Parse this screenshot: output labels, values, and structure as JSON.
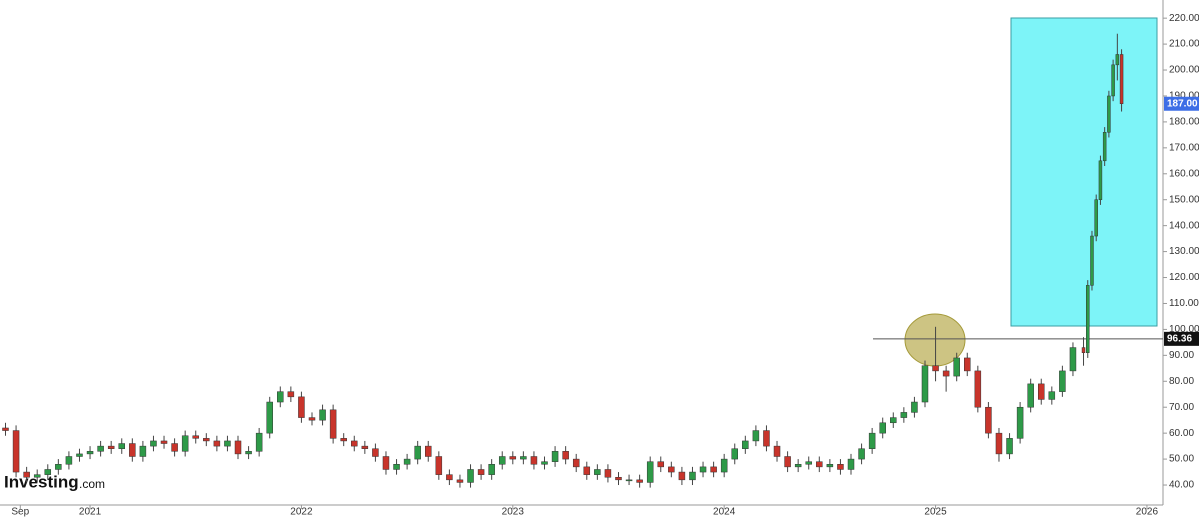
{
  "chart_data": {
    "type": "candlestick",
    "watermark": [
      "Investing",
      ".com"
    ],
    "up_color": "#2e9a48",
    "down_color": "#c8342b",
    "xlim": [
      2020.574,
      2026.076
    ],
    "xticks": [
      {
        "value": 2020.67,
        "label": "Sep"
      },
      {
        "value": 2021,
        "label": "2021"
      },
      {
        "value": 2022,
        "label": "2022"
      },
      {
        "value": 2023,
        "label": "2023"
      },
      {
        "value": 2024,
        "label": "2024"
      },
      {
        "value": 2025,
        "label": "2025"
      },
      {
        "value": 2026,
        "label": "2026"
      }
    ],
    "ylim": [
      32.3,
      227
    ],
    "yticks": [
      {
        "value": 40,
        "label": "40.00"
      },
      {
        "value": 50,
        "label": "50.00"
      },
      {
        "value": 60,
        "label": "60.00"
      },
      {
        "value": 70,
        "label": "70.00"
      },
      {
        "value": 80,
        "label": "80.00"
      },
      {
        "value": 90,
        "label": "90.00"
      },
      {
        "value": 100,
        "label": "100.00"
      },
      {
        "value": 110,
        "label": "110.00"
      },
      {
        "value": 120,
        "label": "120.00"
      },
      {
        "value": 130,
        "label": "130.00"
      },
      {
        "value": 140,
        "label": "140.00"
      },
      {
        "value": 150,
        "label": "150.00"
      },
      {
        "value": 160,
        "label": "160.00"
      },
      {
        "value": 170,
        "label": "170.00"
      },
      {
        "value": 180,
        "label": "180.00"
      },
      {
        "value": 190,
        "label": "190.00"
      },
      {
        "value": 200,
        "label": "200.00"
      },
      {
        "value": 210,
        "label": "210.00"
      },
      {
        "value": 220,
        "label": "220.00"
      }
    ],
    "last_price": {
      "value": 187,
      "label": "187.00"
    },
    "level": {
      "value": 96.36,
      "label": "96.36"
    },
    "x": [
      2020.6,
      2020.65,
      2020.7,
      2020.75,
      2020.8,
      2020.85,
      2020.9,
      2020.95,
      2021.0,
      2021.05,
      2021.1,
      2021.15,
      2021.2,
      2021.25,
      2021.3,
      2021.35,
      2021.4,
      2021.45,
      2021.5,
      2021.55,
      2021.6,
      2021.65,
      2021.7,
      2021.75,
      2021.8,
      2021.85,
      2021.9,
      2021.95,
      2022.0,
      2022.05,
      2022.1,
      2022.15,
      2022.2,
      2022.25,
      2022.3,
      2022.35,
      2022.4,
      2022.45,
      2022.5,
      2022.55,
      2022.6,
      2022.65,
      2022.7,
      2022.75,
      2022.8,
      2022.85,
      2022.9,
      2022.95,
      2023.0,
      2023.05,
      2023.1,
      2023.15,
      2023.2,
      2023.25,
      2023.3,
      2023.35,
      2023.4,
      2023.45,
      2023.5,
      2023.55,
      2023.6,
      2023.65,
      2023.7,
      2023.75,
      2023.8,
      2023.85,
      2023.9,
      2023.95,
      2024.0,
      2024.05,
      2024.1,
      2024.15,
      2024.2,
      2024.25,
      2024.3,
      2024.35,
      2024.4,
      2024.45,
      2024.5,
      2024.55,
      2024.6,
      2024.65,
      2024.7,
      2024.75,
      2024.8,
      2024.85,
      2024.9,
      2024.95,
      2025.0,
      2025.05,
      2025.1,
      2025.15,
      2025.2,
      2025.25,
      2025.3,
      2025.35,
      2025.4,
      2025.45,
      2025.5,
      2025.55,
      2025.6,
      2025.65,
      2025.7,
      2025.72,
      2025.74,
      2025.76,
      2025.78,
      2025.8,
      2025.82,
      2025.84,
      2025.86,
      2025.88
    ],
    "open": [
      62,
      61,
      45,
      43,
      44,
      46,
      48,
      51,
      52,
      53,
      55,
      54,
      56,
      51,
      55,
      57,
      56,
      53,
      59,
      58,
      57,
      55,
      57,
      52,
      53,
      60,
      72,
      76,
      74,
      66,
      65,
      69,
      58,
      57,
      55,
      54,
      51,
      46,
      48,
      50,
      55,
      51,
      44,
      42,
      41,
      46,
      44,
      48,
      51,
      50,
      51,
      48,
      49,
      53,
      50,
      47,
      44,
      46,
      43,
      42,
      42,
      41,
      49,
      47,
      45,
      42,
      45,
      47,
      45,
      50,
      54,
      57,
      61,
      55,
      51,
      47,
      48,
      49,
      47,
      48,
      46,
      50,
      54,
      60,
      64,
      66,
      68,
      72,
      86,
      84,
      82,
      89,
      84,
      70,
      60,
      52,
      58,
      70,
      79,
      73,
      76,
      84,
      93,
      91,
      117,
      136,
      150,
      165,
      176,
      190,
      202,
      206
    ],
    "high": [
      64,
      63,
      47,
      46,
      48,
      50,
      53,
      54,
      55,
      57,
      57,
      58,
      58,
      57,
      59,
      59,
      58,
      61,
      61,
      60,
      59,
      59,
      59,
      55,
      62,
      74,
      78,
      78,
      76,
      68,
      71,
      71,
      60,
      59,
      57,
      56,
      53,
      50,
      52,
      57,
      57,
      53,
      46,
      44,
      48,
      48,
      50,
      53,
      53,
      53,
      53,
      51,
      55,
      55,
      52,
      49,
      48,
      48,
      45,
      44,
      44,
      51,
      51,
      49,
      47,
      47,
      49,
      49,
      52,
      56,
      59,
      63,
      63,
      57,
      53,
      50,
      51,
      51,
      50,
      50,
      52,
      56,
      62,
      66,
      68,
      70,
      74,
      88,
      101,
      86,
      91,
      91,
      86,
      72,
      62,
      60,
      72,
      81,
      81,
      78,
      86,
      95,
      97,
      119,
      138,
      152,
      167,
      178,
      192,
      204,
      214,
      208
    ],
    "low": [
      59,
      43,
      41,
      41,
      42,
      44,
      46,
      49,
      50,
      51,
      52,
      52,
      49,
      49,
      53,
      54,
      51,
      51,
      56,
      55,
      53,
      53,
      50,
      50,
      51,
      58,
      70,
      72,
      64,
      63,
      63,
      56,
      55,
      53,
      52,
      49,
      44,
      44,
      46,
      48,
      49,
      42,
      40,
      39,
      39,
      42,
      42,
      46,
      48,
      48,
      46,
      46,
      47,
      48,
      45,
      42,
      42,
      41,
      40,
      40,
      39,
      39,
      45,
      43,
      40,
      40,
      43,
      43,
      43,
      48,
      52,
      55,
      53,
      49,
      45,
      45,
      46,
      45,
      45,
      44,
      44,
      48,
      52,
      58,
      62,
      64,
      66,
      70,
      80,
      76,
      80,
      82,
      68,
      58,
      49,
      50,
      56,
      68,
      71,
      71,
      74,
      82,
      86,
      89,
      115,
      134,
      148,
      163,
      174,
      188,
      196,
      184
    ],
    "close": [
      61,
      45,
      43,
      44,
      46,
      48,
      51,
      52,
      53,
      55,
      54,
      56,
      51,
      55,
      57,
      56,
      53,
      59,
      58,
      57,
      55,
      57,
      52,
      53,
      60,
      72,
      76,
      74,
      66,
      65,
      69,
      58,
      57,
      55,
      54,
      51,
      46,
      48,
      50,
      55,
      51,
      44,
      42,
      41,
      46,
      44,
      48,
      51,
      50,
      51,
      48,
      49,
      53,
      50,
      47,
      44,
      46,
      43,
      42,
      42,
      41,
      49,
      47,
      45,
      42,
      45,
      47,
      45,
      50,
      54,
      57,
      61,
      55,
      51,
      47,
      48,
      49,
      47,
      48,
      46,
      50,
      54,
      60,
      64,
      66,
      68,
      72,
      86,
      84,
      82,
      89,
      84,
      70,
      60,
      52,
      58,
      70,
      79,
      73,
      76,
      84,
      93,
      91,
      117,
      136,
      150,
      165,
      176,
      190,
      202,
      206,
      187
    ]
  }
}
